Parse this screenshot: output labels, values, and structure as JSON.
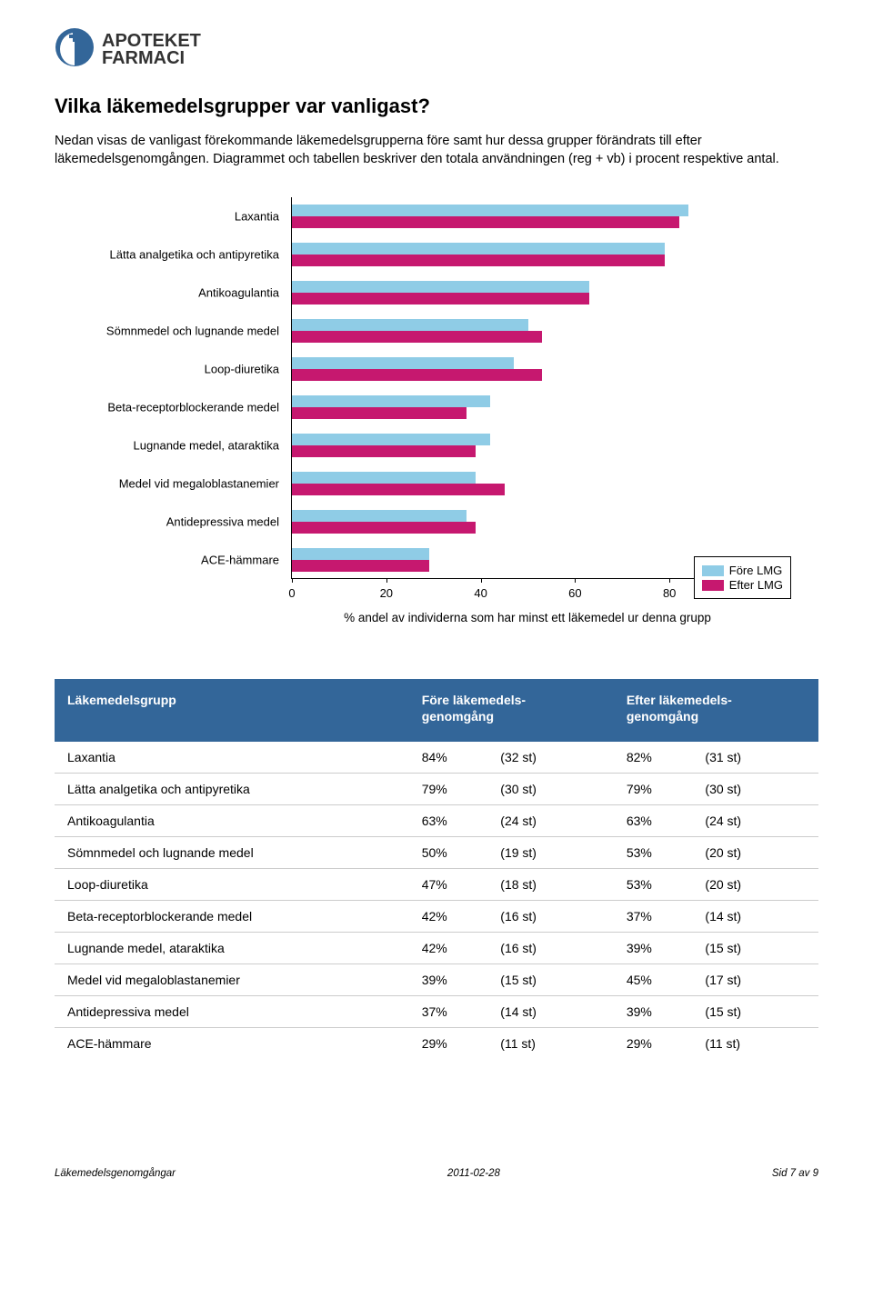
{
  "logo": {
    "line1": "APOTEKET",
    "line2": "FARMACI",
    "icon_bg": "#336699",
    "icon_fg": "#ffffff"
  },
  "heading": "Vilka läkemedelsgrupper var vanligast?",
  "intro": "Nedan visas de vanligast förekommande läkemedelsgrupperna före samt hur dessa grupper förändrats till efter läkemedelsgenomgången. Diagrammet och tabellen beskriver den totala användningen (reg + vb) i procent respektive antal.",
  "chart": {
    "type": "bar",
    "orientation": "horizontal",
    "xlim": [
      0,
      100
    ],
    "xtick_step": 20,
    "xlabel": "% andel av individerna som har minst ett läkemedel ur denna grupp",
    "legend": [
      {
        "label": "Före LMG",
        "color": "#8fcce6"
      },
      {
        "label": "Efter LMG",
        "color": "#c6186f"
      }
    ],
    "categories": [
      "Laxantia",
      "Lätta analgetika och antipyretika",
      "Antikoagulantia",
      "Sömnmedel och lugnande medel",
      "Loop-diuretika",
      "Beta-receptorblockerande medel",
      "Lugnande medel, ataraktika",
      "Medel vid megaloblastanemier",
      "Antidepressiva medel",
      "ACE-hämmare"
    ],
    "series": {
      "fore": [
        84,
        79,
        63,
        50,
        47,
        42,
        42,
        39,
        37,
        29
      ],
      "efter": [
        82,
        79,
        63,
        53,
        53,
        37,
        39,
        45,
        39,
        29
      ]
    },
    "colors": {
      "fore": "#8fcce6",
      "efter": "#c6186f"
    },
    "font_size": 13,
    "axis_color": "#000000",
    "background": "#ffffff"
  },
  "table": {
    "header_bg": "#336699",
    "header_fg": "#ffffff",
    "border_color": "#cccccc",
    "columns": [
      "Läkemedelsgrupp",
      "Före läkemedels-\ngenomgång",
      "Efter läkemedels-\ngenomgång"
    ],
    "rows": [
      {
        "name": "Laxantia",
        "fore_pct": "84%",
        "fore_st": "(32 st)",
        "efter_pct": "82%",
        "efter_st": "(31 st)"
      },
      {
        "name": "Lätta analgetika och antipyretika",
        "fore_pct": "79%",
        "fore_st": "(30 st)",
        "efter_pct": "79%",
        "efter_st": "(30 st)"
      },
      {
        "name": "Antikoagulantia",
        "fore_pct": "63%",
        "fore_st": "(24 st)",
        "efter_pct": "63%",
        "efter_st": "(24 st)"
      },
      {
        "name": "Sömnmedel och lugnande medel",
        "fore_pct": "50%",
        "fore_st": "(19 st)",
        "efter_pct": "53%",
        "efter_st": "(20 st)"
      },
      {
        "name": "Loop-diuretika",
        "fore_pct": "47%",
        "fore_st": "(18 st)",
        "efter_pct": "53%",
        "efter_st": "(20 st)"
      },
      {
        "name": "Beta-receptorblockerande medel",
        "fore_pct": "42%",
        "fore_st": "(16 st)",
        "efter_pct": "37%",
        "efter_st": "(14 st)"
      },
      {
        "name": "Lugnande medel, ataraktika",
        "fore_pct": "42%",
        "fore_st": "(16 st)",
        "efter_pct": "39%",
        "efter_st": "(15 st)"
      },
      {
        "name": "Medel vid megaloblastanemier",
        "fore_pct": "39%",
        "fore_st": "(15 st)",
        "efter_pct": "45%",
        "efter_st": "(17 st)"
      },
      {
        "name": "Antidepressiva medel",
        "fore_pct": "37%",
        "fore_st": "(14 st)",
        "efter_pct": "39%",
        "efter_st": "(15 st)"
      },
      {
        "name": "ACE-hämmare",
        "fore_pct": "29%",
        "fore_st": "(11 st)",
        "efter_pct": "29%",
        "efter_st": "(11 st)"
      }
    ]
  },
  "footer": {
    "left": "Läkemedelsgenomgångar",
    "center": "2011-02-28",
    "right": "Sid 7 av 9"
  }
}
